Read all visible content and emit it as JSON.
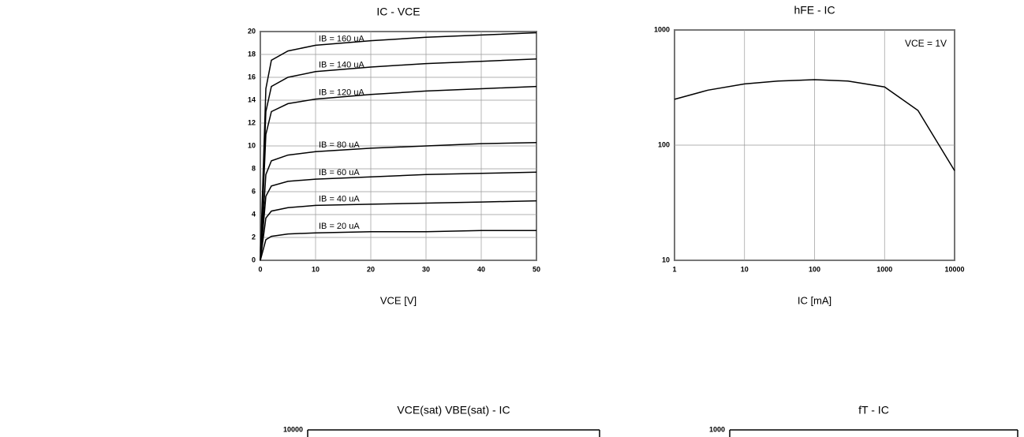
{
  "chart_data": [
    {
      "type": "line",
      "title": "IC - VCE",
      "x_label": "VCE [V]",
      "x": [
        0,
        1,
        2,
        5,
        10,
        20,
        30,
        40,
        50
      ],
      "xlim": [
        0,
        50
      ],
      "xticks": [
        0,
        10,
        20,
        30,
        40,
        50
      ],
      "ylim": [
        0,
        20
      ],
      "yticks": [
        0,
        2,
        4,
        6,
        8,
        10,
        12,
        14,
        16,
        18,
        20
      ],
      "grid": true,
      "series": [
        {
          "name": "IB = 160 uA",
          "color": "#000000",
          "values": [
            0,
            15,
            17.5,
            18.3,
            18.8,
            19.2,
            19.5,
            19.7,
            19.9
          ]
        },
        {
          "name": "IB = 140 uA",
          "color": "#000000",
          "values": [
            0,
            13,
            15.2,
            16,
            16.5,
            16.9,
            17.2,
            17.4,
            17.6
          ]
        },
        {
          "name": "IB = 120 uA",
          "color": "#000000",
          "values": [
            0,
            11,
            13,
            13.7,
            14.1,
            14.5,
            14.8,
            15,
            15.2
          ]
        },
        {
          "name": "IB = 80 uA",
          "color": "#000000",
          "values": [
            0,
            7.5,
            8.7,
            9.2,
            9.5,
            9.8,
            10,
            10.2,
            10.3
          ]
        },
        {
          "name": "IB = 60 uA",
          "color": "#000000",
          "values": [
            0,
            5.6,
            6.5,
            6.9,
            7.1,
            7.3,
            7.5,
            7.6,
            7.7
          ]
        },
        {
          "name": "IB = 40 uA",
          "color": "#000000",
          "values": [
            0,
            3.7,
            4.3,
            4.6,
            4.8,
            4.9,
            5,
            5.1,
            5.2
          ]
        },
        {
          "name": "IB = 20 uA",
          "color": "#000000",
          "values": [
            0,
            1.8,
            2.1,
            2.3,
            2.4,
            2.5,
            2.5,
            2.6,
            2.6
          ]
        }
      ]
    },
    {
      "type": "line",
      "title": "hFE - IC",
      "x_label": "IC [mA]",
      "annotation": "VCE = 1V",
      "xlog": true,
      "ylog": true,
      "x": [
        1,
        3,
        10,
        30,
        100,
        300,
        1000,
        3000,
        10000
      ],
      "xlim": [
        1,
        10000
      ],
      "xticks": [
        1,
        10,
        100,
        1000,
        10000
      ],
      "ylim": [
        10,
        1000
      ],
      "yticks": [
        10,
        100,
        1000
      ],
      "grid": true,
      "series": [
        {
          "name": "VCE = 1V",
          "color": "#000000",
          "values": [
            250,
            300,
            340,
            360,
            370,
            360,
            320,
            200,
            60
          ]
        }
      ]
    },
    {
      "type": "frame",
      "title": "VCE(sat) VBE(sat) - IC",
      "ylog": true,
      "ylim": [
        1,
        10000
      ],
      "yticks": [
        10000
      ]
    },
    {
      "type": "frame",
      "title": "fT - IC",
      "ylog": true,
      "ylim": [
        1,
        1000
      ],
      "yticks": [
        1000
      ]
    }
  ]
}
